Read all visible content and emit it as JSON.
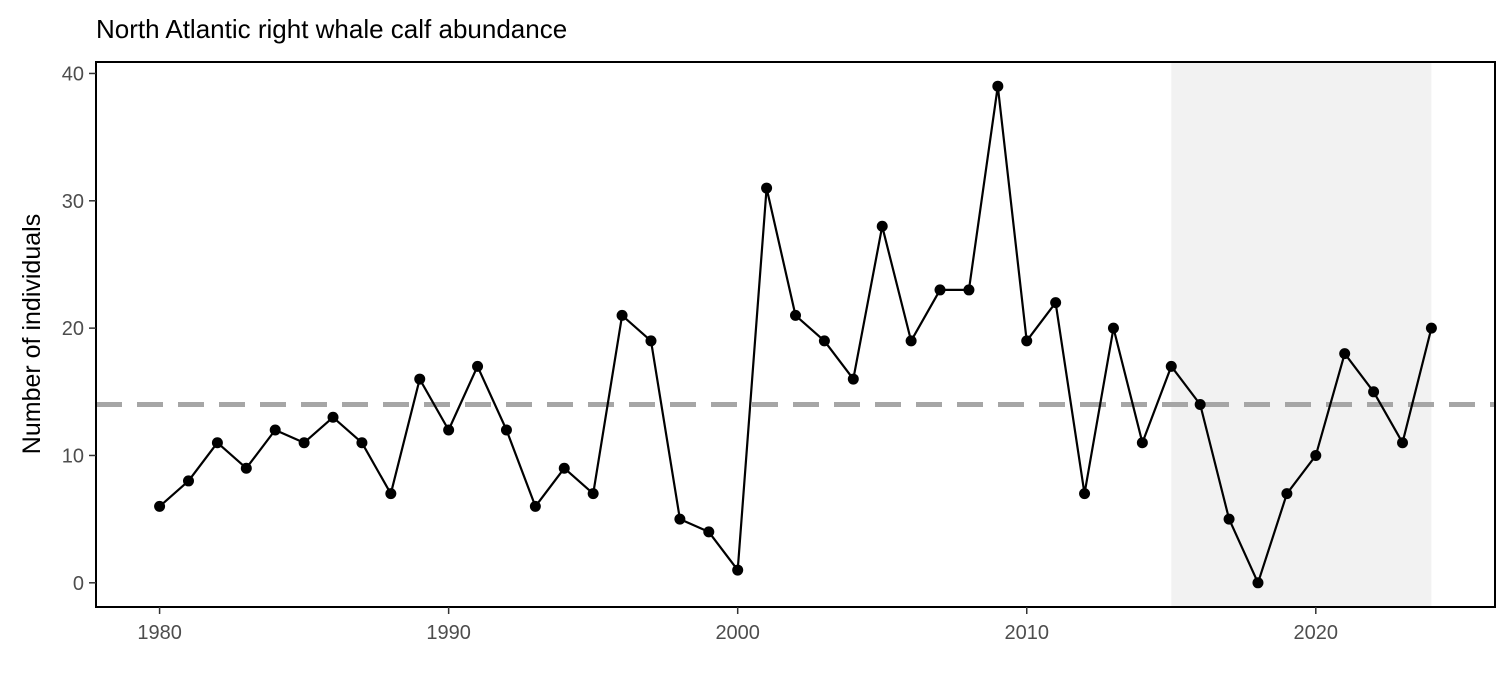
{
  "chart_data": {
    "type": "line",
    "title": "North Atlantic right whale calf abundance",
    "xlabel": "",
    "ylabel": "Number of individuals",
    "x": [
      1980,
      1981,
      1982,
      1983,
      1984,
      1985,
      1986,
      1987,
      1988,
      1989,
      1990,
      1991,
      1992,
      1993,
      1994,
      1995,
      1996,
      1997,
      1998,
      1999,
      2000,
      2001,
      2002,
      2003,
      2004,
      2005,
      2006,
      2007,
      2008,
      2009,
      2010,
      2011,
      2012,
      2013,
      2014,
      2015,
      2016,
      2017,
      2018,
      2019,
      2020,
      2021,
      2022,
      2023,
      2024
    ],
    "series": [
      {
        "values": [
          6,
          8,
          11,
          9,
          12,
          11,
          13,
          11,
          7,
          16,
          12,
          17,
          12,
          6,
          9,
          7,
          21,
          19,
          5,
          4,
          1,
          31,
          21,
          19,
          16,
          28,
          19,
          23,
          23,
          39,
          19,
          22,
          7,
          20,
          11,
          17,
          14,
          5,
          0,
          7,
          10,
          18,
          15,
          11,
          20
        ],
        "color": "#000000"
      }
    ],
    "xlim": [
      1977.8,
      2026.2
    ],
    "ylim": [
      -1.9,
      40.9
    ],
    "x_ticks": [
      1980,
      1990,
      2000,
      2010,
      2020
    ],
    "y_ticks": [
      0,
      10,
      20,
      30,
      40
    ],
    "reference_line": {
      "y": 14,
      "style": "dashed",
      "color": "#a6a6a6"
    },
    "shaded_period": {
      "x_start": 2015,
      "x_end": 2024,
      "color": "#f2f2f2"
    },
    "grid": false,
    "legend": "none"
  }
}
